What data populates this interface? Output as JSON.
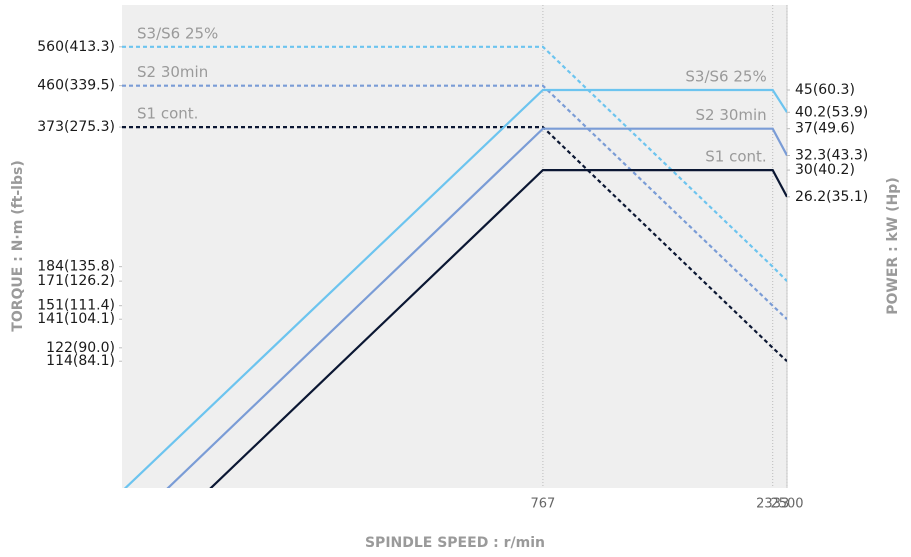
{
  "chart_data": {
    "type": "line",
    "xlabel": "SPINDLE SPEED : r/min",
    "ylabel": "TORQUE : N·m (ft-lbs)",
    "y2label": "POWER : kW (Hp)",
    "xscale": "log",
    "yscale": "log",
    "x": [
      100,
      767,
      2333,
      2500
    ],
    "xlim": [
      100,
      2500
    ],
    "xticks": [
      767,
      2333,
      2500
    ],
    "ylim": [
      60,
      692
    ],
    "yticks": [
      {
        "value": 560,
        "label": "560(413.3)"
      },
      {
        "value": 460,
        "label": "460(339.5)"
      },
      {
        "value": 373,
        "label": "373(275.3)"
      },
      {
        "value": 184,
        "label": "184(135.8)"
      },
      {
        "value": 171,
        "label": "171(126.2)"
      },
      {
        "value": 151,
        "label": "151(111.4)"
      },
      {
        "value": 141,
        "label": "141(104.1)"
      },
      {
        "value": 122,
        "label": "122(90.0)"
      },
      {
        "value": 114,
        "label": "114(84.1)"
      }
    ],
    "y2lim": [
      6,
      69.2
    ],
    "y2ticks": [
      {
        "value": 45,
        "label": "45(60.3)"
      },
      {
        "value": 40.2,
        "label": "40.2(53.9)"
      },
      {
        "value": 37,
        "label": "37(49.6)"
      },
      {
        "value": 32.3,
        "label": "32.3(43.3)"
      },
      {
        "value": 30,
        "label": "30(40.2)"
      },
      {
        "value": 26.2,
        "label": "26.2(35.1)"
      }
    ],
    "series": [
      {
        "name": "S3/S6 25%",
        "color": "#6cc4ef",
        "dashed": true,
        "values": [
          560,
          560,
          184,
          171
        ]
      },
      {
        "name": "S2 30min",
        "color": "#7a9cd6",
        "dashed": true,
        "values": [
          460,
          460,
          151,
          141
        ]
      },
      {
        "name": "S1 cont.",
        "color": "#0b1733",
        "dashed": true,
        "values": [
          373,
          373,
          122,
          114
        ]
      },
      {
        "name": "S3/S6 25%",
        "color": "#6cc4ef",
        "dashed": false,
        "axis": "y2",
        "values": [
          5.9,
          45,
          45,
          40.2
        ]
      },
      {
        "name": "S2 30min",
        "color": "#7a9cd6",
        "dashed": false,
        "axis": "y2",
        "values": [
          4.8,
          37,
          37,
          32.3
        ]
      },
      {
        "name": "S1 cont.",
        "color": "#0b1733",
        "dashed": false,
        "axis": "y2",
        "values": [
          3.9,
          30,
          30,
          26.2
        ]
      }
    ]
  }
}
